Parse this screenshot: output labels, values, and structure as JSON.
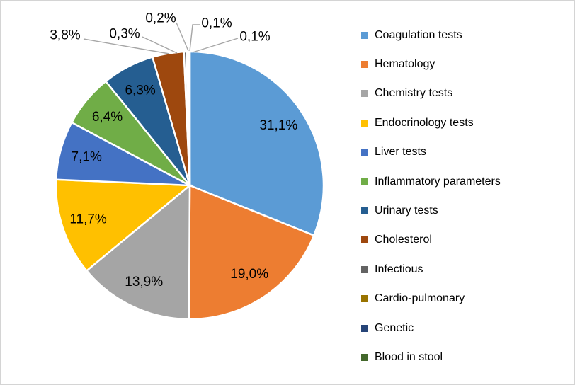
{
  "chart_data": {
    "type": "pie",
    "title": "",
    "unit": "%",
    "decimal_separator": ",",
    "direction": "clockwise",
    "start_angle_deg": 0,
    "legend_position": "right",
    "series": [
      {
        "label": "Coagulation tests",
        "value": 31.1,
        "display": "31,1%",
        "color": "#5B9BD5"
      },
      {
        "label": "Hematology",
        "value": 19.0,
        "display": "19,0%",
        "color": "#ED7D31"
      },
      {
        "label": "Chemistry tests",
        "value": 13.9,
        "display": "13,9%",
        "color": "#A5A5A5"
      },
      {
        "label": "Endocrinology tests",
        "value": 11.7,
        "display": "11,7%",
        "color": "#FFC000"
      },
      {
        "label": "Liver tests",
        "value": 7.1,
        "display": "7,1%",
        "color": "#4472C4"
      },
      {
        "label": "Inflammatory parameters",
        "value": 6.4,
        "display": "6,4%",
        "color": "#70AD47"
      },
      {
        "label": "Urinary tests",
        "value": 6.3,
        "display": "6,3%",
        "color": "#255E91"
      },
      {
        "label": "Cholesterol",
        "value": 3.8,
        "display": "3,8%",
        "color": "#9E480E"
      },
      {
        "label": "Infectious",
        "value": 0.3,
        "display": "0,3%",
        "color": "#636363"
      },
      {
        "label": "Cardio-pulmonary",
        "value": 0.2,
        "display": "0,2%",
        "color": "#997300"
      },
      {
        "label": "Genetic",
        "value": 0.1,
        "display": "0,1%",
        "color": "#264478"
      },
      {
        "label": "Blood in stool",
        "value": 0.1,
        "display": "0,1%",
        "color": "#43682B"
      }
    ],
    "label_placement": "inside for slices >= 6.3%, outside with leader lines for slices <= 3.8%"
  },
  "styles": {
    "background": "#FFFFFF",
    "frame_border_color": "#D4D4D4",
    "slice_border_color": "#FFFFFF",
    "leader_line_color": "#A6A6A6",
    "label_text_color": "#000000"
  }
}
